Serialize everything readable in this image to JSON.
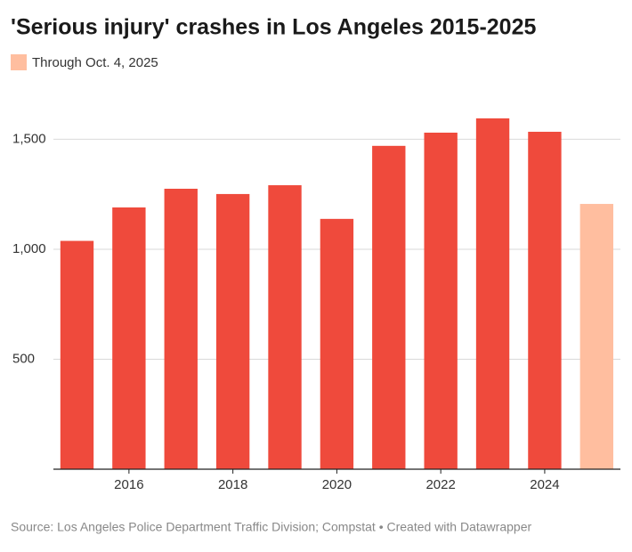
{
  "chart_data": {
    "type": "bar",
    "title": "'Serious injury' crashes in Los Angeles 2015-2025",
    "x": [
      2015,
      2016,
      2017,
      2018,
      2019,
      2020,
      2021,
      2022,
      2023,
      2024,
      2025
    ],
    "values": [
      1038,
      1190,
      1275,
      1251,
      1291,
      1138,
      1470,
      1530,
      1595,
      1534,
      1206
    ],
    "colors": [
      "#ef4a3c",
      "#ef4a3c",
      "#ef4a3c",
      "#ef4a3c",
      "#ef4a3c",
      "#ef4a3c",
      "#ef4a3c",
      "#ef4a3c",
      "#ef4a3c",
      "#ef4a3c",
      "#ffbe9f"
    ],
    "legend": [
      {
        "label": "Through Oct. 4, 2025",
        "color": "#ffbe9f"
      }
    ],
    "xlim": [
      2014.5,
      2025.5
    ],
    "xticks": [
      2016,
      2018,
      2020,
      2022,
      2024
    ],
    "ylim": [
      0,
      1700
    ],
    "yticks": [
      500,
      {
        "value": 1000,
        "label": "1,000"
      },
      {
        "value": 1500,
        "label": "1,500"
      }
    ],
    "grid": true,
    "source": "Source: Los Angeles Police Department Traffic Division; Compstat • Created with Datawrapper"
  }
}
